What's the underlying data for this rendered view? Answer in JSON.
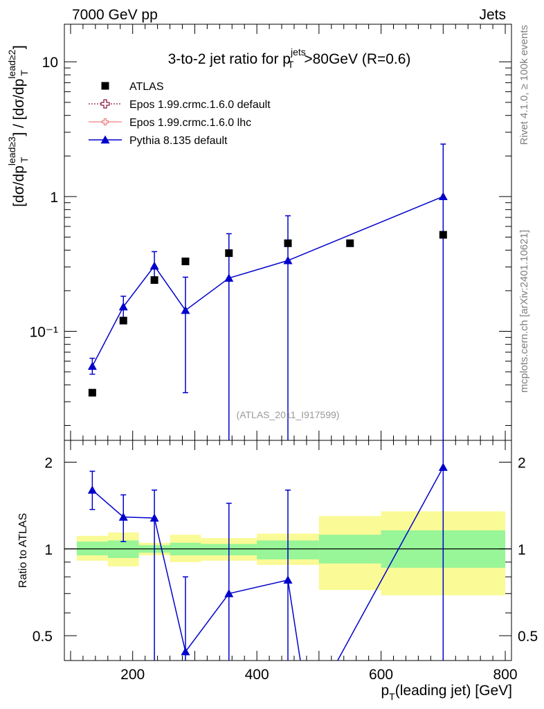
{
  "header": {
    "left": "7000 GeV pp",
    "right": "Jets"
  },
  "side_labels": {
    "rivet": "Rivet 4.1.0, ≥ 100k events",
    "mcplots": "mcplots.cern.ch [arXiv:2401.10621]"
  },
  "chart_data": {
    "type": "scatter",
    "title": "3-to-2 jet ratio for p_T^jets >80GeV (R=0.6)",
    "analysis_tag": "(ATLAS_2011_I917599)",
    "xlabel": "p_T(leading jet) [GeV]",
    "ylabel_main": "[dσ/dp_T^lead≥3] / [dσ/dp_T^lead≥2]",
    "ylabel_ratio": "Ratio to ATLAS",
    "xlim": [
      90,
      810
    ],
    "ylim_main": [
      0.0155,
      19
    ],
    "ylim_ratio": [
      0.41,
      2.38
    ],
    "yscale_main": "log",
    "yscale_ratio": "log",
    "x_ticks": [
      200,
      400,
      600,
      800
    ],
    "y_ticks_main": [
      {
        "value": 10,
        "label": "10"
      },
      {
        "value": 1,
        "label": "1"
      },
      {
        "value": 0.1,
        "label": "10⁻¹"
      }
    ],
    "y_ticks_ratio": [
      {
        "value": 2,
        "label": "2"
      },
      {
        "value": 1,
        "label": "1"
      },
      {
        "value": 0.5,
        "label": "0.5"
      }
    ],
    "legend": [
      {
        "label": "ATLAS",
        "marker": "square",
        "color": "#000000"
      },
      {
        "label": "Epos 1.99.crmc.1.6.0 default",
        "marker": "open-cross",
        "color": "#8b1a3a"
      },
      {
        "label": "Epos 1.99.crmc.1.6.0 lhc",
        "marker": "open-cross",
        "color": "#f08080"
      },
      {
        "label": "Pythia 8.135 default",
        "marker": "triangle",
        "color": "#0000cc"
      }
    ],
    "atlas": {
      "x": [
        135,
        185,
        235,
        285,
        355,
        450,
        550,
        700
      ],
      "y": [
        0.035,
        0.12,
        0.24,
        0.33,
        0.38,
        0.45,
        0.45,
        0.52
      ]
    },
    "pythia": {
      "x": [
        135,
        185,
        235,
        285,
        355,
        450,
        700
      ],
      "y": [
        0.055,
        0.152,
        0.305,
        0.143,
        0.248,
        0.335,
        1.0
      ],
      "err_lo": [
        0.048,
        0.126,
        0.24,
        0.035,
        0.001,
        0.001,
        0.001
      ],
      "err_hi": [
        0.063,
        0.182,
        0.39,
        0.252,
        0.53,
        0.72,
        2.45
      ]
    },
    "ratio_pythia": {
      "x": [
        135,
        185,
        235,
        285,
        355,
        450,
        700
      ],
      "y": [
        1.6,
        1.29,
        1.28,
        0.44,
        0.7,
        0.78,
        1.92
      ],
      "err_lo": [
        1.37,
        1.06,
        0.3,
        0.3,
        0.3,
        0.3,
        0.3
      ],
      "err_hi": [
        1.86,
        1.54,
        1.6,
        0.8,
        1.44,
        1.6,
        2.38
      ]
    },
    "ratio_pythia_line_extra": [
      {
        "from_x": 450,
        "from_y": 0.78,
        "to_x": 470,
        "to_y": 0.41
      },
      {
        "from_x": 530,
        "from_y": 0.41,
        "to_x": 700,
        "to_y": 1.92
      }
    ],
    "ratio_bands": [
      {
        "x0": 110,
        "x1": 160,
        "g_lo": 0.95,
        "g_hi": 1.06,
        "y_lo": 0.91,
        "y_hi": 1.11
      },
      {
        "x0": 160,
        "x1": 210,
        "g_lo": 0.93,
        "g_hi": 1.07,
        "y_lo": 0.87,
        "y_hi": 1.14
      },
      {
        "x0": 210,
        "x1": 260,
        "g_lo": 0.97,
        "g_hi": 1.03,
        "y_lo": 0.95,
        "y_hi": 1.05
      },
      {
        "x0": 260,
        "x1": 310,
        "g_lo": 0.95,
        "g_hi": 1.05,
        "y_lo": 0.9,
        "y_hi": 1.12
      },
      {
        "x0": 310,
        "x1": 400,
        "g_lo": 0.95,
        "g_hi": 1.04,
        "y_lo": 0.91,
        "y_hi": 1.09
      },
      {
        "x0": 400,
        "x1": 500,
        "g_lo": 0.92,
        "g_hi": 1.07,
        "y_lo": 0.88,
        "y_hi": 1.13
      },
      {
        "x0": 500,
        "x1": 600,
        "g_lo": 0.89,
        "g_hi": 1.12,
        "y_lo": 0.72,
        "y_hi": 1.3
      },
      {
        "x0": 600,
        "x1": 800,
        "g_lo": 0.86,
        "g_hi": 1.16,
        "y_lo": 0.69,
        "y_hi": 1.35
      }
    ],
    "colors": {
      "band_green": "#98f598",
      "band_yellow": "#fafa96",
      "pythia": "#0000cc",
      "data": "#000000",
      "side_text": "#7f7f7f"
    }
  }
}
